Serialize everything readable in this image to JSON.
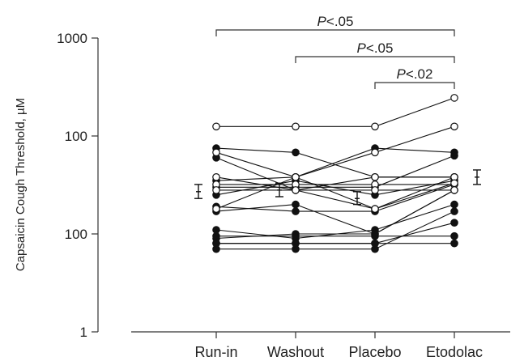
{
  "chart_data": {
    "type": "line",
    "categories": [
      "Run-in",
      "Washout",
      "Placebo",
      "Etodolac"
    ],
    "ylabel": "Capsaicin Cough Threshold, µM",
    "yscale": "log",
    "ylim": [
      1,
      1000
    ],
    "ytick_labels": [
      "1",
      "100",
      "100",
      "1000"
    ],
    "grid": false,
    "subjects": [
      {
        "values": [
          125,
          125,
          125,
          245
        ],
        "marker": "open"
      },
      {
        "values": [
          68,
          38,
          68,
          125
        ],
        "marker": "open"
      },
      {
        "values": [
          38,
          28,
          38,
          38
        ],
        "marker": "open"
      },
      {
        "values": [
          32,
          32,
          32,
          32
        ],
        "marker": "open"
      },
      {
        "values": [
          28,
          28,
          28,
          28
        ],
        "marker": "open"
      },
      {
        "values": [
          18,
          38,
          18,
          33
        ],
        "marker": "open"
      },
      {
        "values": [
          75,
          68,
          38,
          38
        ],
        "marker": "filled"
      },
      {
        "values": [
          60,
          28,
          18,
          38
        ],
        "marker": "filled"
      },
      {
        "values": [
          35,
          38,
          75,
          68
        ],
        "marker": "filled"
      },
      {
        "values": [
          30,
          30,
          30,
          63
        ],
        "marker": "filled"
      },
      {
        "values": [
          25,
          35,
          25,
          35
        ],
        "marker": "filled"
      },
      {
        "values": [
          19,
          17,
          17,
          32
        ],
        "marker": "filled"
      },
      {
        "values": [
          17,
          20,
          10,
          28
        ],
        "marker": "filled"
      },
      {
        "values": [
          11,
          9,
          11,
          20
        ],
        "marker": "filled"
      },
      {
        "values": [
          9,
          10,
          10,
          28
        ],
        "marker": "filled"
      },
      {
        "values": [
          8,
          8,
          8,
          13
        ],
        "marker": "filled"
      },
      {
        "values": [
          7,
          7,
          7,
          17
        ],
        "marker": "filled"
      },
      {
        "values": [
          9.5,
          9.5,
          9.5,
          9.5
        ],
        "marker": "filled"
      },
      {
        "values": [
          8,
          8,
          8,
          8
        ],
        "marker": "filled"
      }
    ],
    "mean_sem": [
      {
        "category": "Run-in",
        "mean": 27,
        "low": 23,
        "high": 32
      },
      {
        "category": "Washout",
        "mean": 28,
        "low": 24,
        "high": 33
      },
      {
        "category": "Placebo",
        "mean": 23,
        "low": 20,
        "high": 27
      },
      {
        "category": "Etodolac",
        "mean": 38,
        "low": 32,
        "high": 45
      }
    ],
    "significance": [
      {
        "from": "Run-in",
        "to": "Etodolac",
        "label": "P<.05"
      },
      {
        "from": "Washout",
        "to": "Etodolac",
        "label": "P<.05"
      },
      {
        "from": "Placebo",
        "to": "Etodolac",
        "label": "P<.02"
      }
    ]
  }
}
